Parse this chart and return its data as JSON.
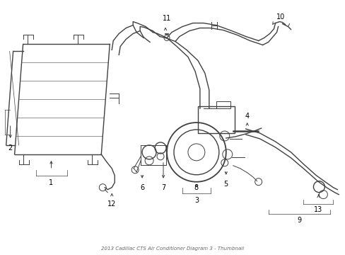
{
  "title": "2013 Cadillac CTS Air Conditioner Diagram 3 - Thumbnail",
  "bg": "#ffffff",
  "lc": "#404040",
  "fig_w": 4.89,
  "fig_h": 3.6,
  "dpi": 100,
  "label_fs": 7
}
